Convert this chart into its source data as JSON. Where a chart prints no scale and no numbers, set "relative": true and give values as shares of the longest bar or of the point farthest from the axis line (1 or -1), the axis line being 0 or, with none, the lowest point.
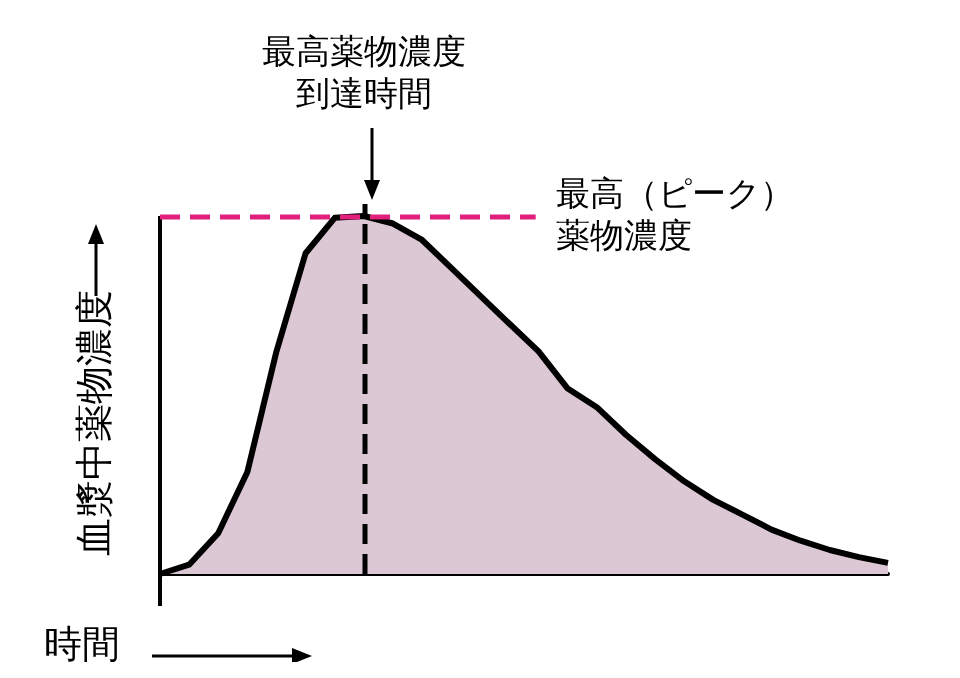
{
  "chart_data": {
    "type": "area",
    "relative": true,
    "xlabel": "時間",
    "ylabel": "血漿中薬物濃度",
    "categories": [
      null,
      null,
      null,
      null,
      null,
      null,
      null,
      null,
      null,
      null,
      null,
      null,
      null,
      null,
      null,
      null,
      null,
      null,
      null,
      null,
      null,
      null,
      null,
      null,
      null,
      null
    ],
    "series": [
      {
        "color": "#dcc8d4",
        "values": [
          0,
          0.026,
          0.114,
          0.285,
          0.622,
          0.896,
          0.995,
          1,
          0.979,
          0.933,
          0.855,
          0.777,
          0.699,
          0.622,
          0.518,
          0.466,
          0.389,
          0.321,
          0.259,
          0.207,
          0.166,
          0.124,
          0.093,
          0.067,
          0.047,
          0.031
        ]
      }
    ],
    "ref_lines": [
      {
        "axis": "y",
        "value": 1,
        "label": "最高（ピーク）薬物濃度",
        "color": "#e0207a",
        "line_style": "dashed"
      }
    ],
    "annotations": [
      "最高薬物濃度到達時間"
    ],
    "grid": false
  }
}
